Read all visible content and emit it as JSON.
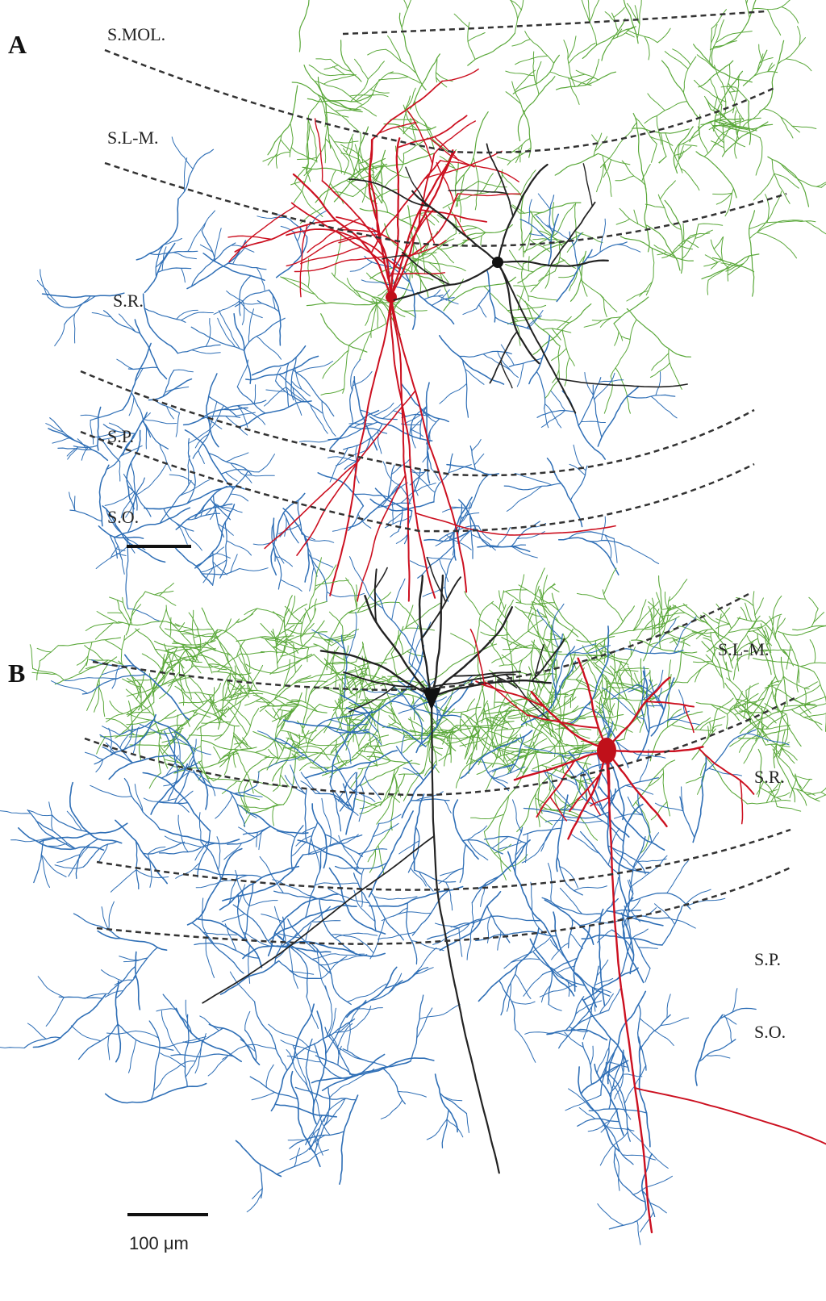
{
  "panels": [
    {
      "label": "A",
      "layers": [
        "S.MOL.",
        "S.L-M.",
        "S.R.",
        "S.P.",
        "S.O."
      ]
    },
    {
      "label": "B",
      "layers": [
        "S.L-M.",
        "S.R.",
        "S.P.",
        "S.O."
      ],
      "scale_bar": "100 μm"
    }
  ]
}
